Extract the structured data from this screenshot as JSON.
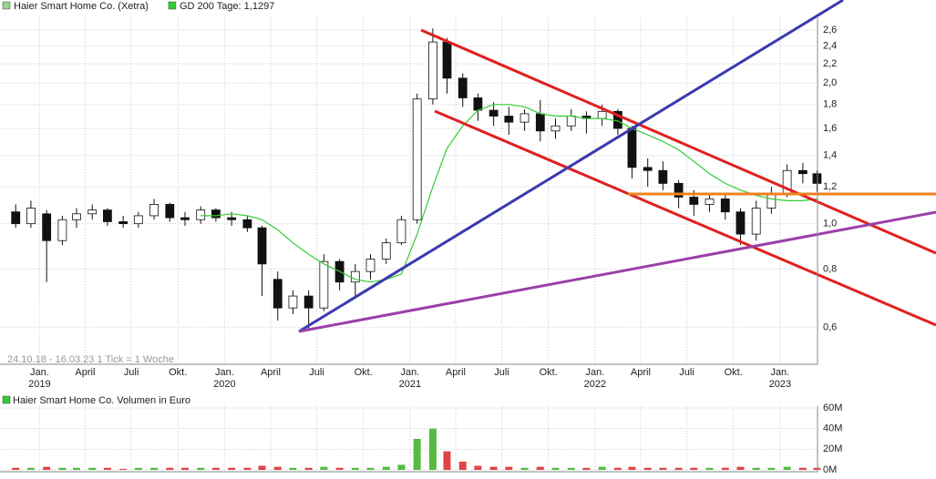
{
  "chart_data": [
    {
      "type": "candlestick",
      "x": [
        "2018-11",
        "2018-12",
        "2019-01",
        "2019-02",
        "2019-03",
        "2019-04",
        "2019-05",
        "2019-06",
        "2019-07",
        "2019-08",
        "2019-09",
        "2019-10",
        "2019-11",
        "2019-12",
        "2020-01",
        "2020-02",
        "2020-03",
        "2020-04",
        "2020-05",
        "2020-06",
        "2020-07",
        "2020-08",
        "2020-09",
        "2020-10",
        "2020-11",
        "2020-12",
        "2021-01",
        "2021-02",
        "2021-03",
        "2021-04",
        "2021-05",
        "2021-06",
        "2021-07",
        "2021-08",
        "2021-09",
        "2021-10",
        "2021-11",
        "2021-12",
        "2022-01",
        "2022-02",
        "2022-03",
        "2022-04",
        "2022-05",
        "2022-06",
        "2022-07",
        "2022-08",
        "2022-09",
        "2022-10",
        "2022-11",
        "2022-12",
        "2023-01",
        "2023-02",
        "2023-03"
      ],
      "series": [
        {
          "name": "Haier Smart Home Co. (Xetra)",
          "color": "#9ad28a",
          "open": [
            1.06,
            1.0,
            1.05,
            0.92,
            1.02,
            1.05,
            1.07,
            1.01,
            1.0,
            1.04,
            1.1,
            1.03,
            1.02,
            1.07,
            1.03,
            1.02,
            0.98,
            0.76,
            0.66,
            0.7,
            0.66,
            0.83,
            0.75,
            0.79,
            0.84,
            0.91,
            1.02,
            1.85,
            2.45,
            2.05,
            1.86,
            1.75,
            1.7,
            1.65,
            1.72,
            1.58,
            1.62,
            1.7,
            1.68,
            1.74,
            1.6,
            1.32,
            1.3,
            1.22,
            1.14,
            1.1,
            1.13,
            1.06,
            0.95,
            1.08,
            1.16,
            1.3,
            1.28
          ],
          "high": [
            1.1,
            1.12,
            1.07,
            1.04,
            1.08,
            1.1,
            1.08,
            1.04,
            1.06,
            1.13,
            1.11,
            1.06,
            1.09,
            1.08,
            1.06,
            1.04,
            0.99,
            0.79,
            0.72,
            0.72,
            0.86,
            0.84,
            0.82,
            0.86,
            0.93,
            1.04,
            1.9,
            2.62,
            2.5,
            2.1,
            1.9,
            1.82,
            1.78,
            1.76,
            1.84,
            1.68,
            1.76,
            1.74,
            1.8,
            1.76,
            1.62,
            1.38,
            1.36,
            1.24,
            1.18,
            1.16,
            1.15,
            1.08,
            1.12,
            1.2,
            1.34,
            1.35,
            1.3
          ],
          "low": [
            0.98,
            0.98,
            0.75,
            0.9,
            0.98,
            1.02,
            0.99,
            0.98,
            0.98,
            1.02,
            1.01,
            0.99,
            1.0,
            1.01,
            0.99,
            0.96,
            0.7,
            0.62,
            0.64,
            0.59,
            0.65,
            0.72,
            0.7,
            0.76,
            0.82,
            0.9,
            1.0,
            1.8,
            1.9,
            1.78,
            1.66,
            1.62,
            1.55,
            1.58,
            1.5,
            1.52,
            1.58,
            1.56,
            1.62,
            1.55,
            1.25,
            1.2,
            1.18,
            1.08,
            1.04,
            1.06,
            1.02,
            0.9,
            0.92,
            1.05,
            1.14,
            1.22,
            1.17
          ],
          "close": [
            1.0,
            1.08,
            0.92,
            1.02,
            1.05,
            1.07,
            1.01,
            1.0,
            1.04,
            1.1,
            1.03,
            1.02,
            1.07,
            1.03,
            1.02,
            0.98,
            0.82,
            0.66,
            0.7,
            0.66,
            0.83,
            0.75,
            0.79,
            0.84,
            0.91,
            1.02,
            1.85,
            2.45,
            2.05,
            1.86,
            1.75,
            1.7,
            1.65,
            1.72,
            1.58,
            1.62,
            1.7,
            1.68,
            1.74,
            1.6,
            1.32,
            1.3,
            1.22,
            1.14,
            1.1,
            1.13,
            1.06,
            0.95,
            1.08,
            1.16,
            1.3,
            1.28,
            1.22
          ]
        },
        {
          "name": "GD 200 Tage: 1,1297",
          "color": "#33cc33",
          "values": [
            null,
            null,
            null,
            null,
            null,
            null,
            null,
            null,
            null,
            null,
            null,
            null,
            1.04,
            1.04,
            1.05,
            1.04,
            1.02,
            0.97,
            0.91,
            0.86,
            0.82,
            0.79,
            0.76,
            0.75,
            0.76,
            0.78,
            0.95,
            1.2,
            1.45,
            1.62,
            1.75,
            1.8,
            1.8,
            1.78,
            1.72,
            1.7,
            1.7,
            1.68,
            1.68,
            1.66,
            1.6,
            1.55,
            1.5,
            1.44,
            1.36,
            1.28,
            1.22,
            1.18,
            1.15,
            1.13,
            1.12,
            1.12,
            1.13
          ]
        }
      ],
      "up_color": "#ffffff",
      "down_color": "#111111",
      "log_scale": true,
      "grid": true,
      "xlim": [
        "2018-10-24",
        "2023-03-16"
      ],
      "ylim": [
        0.5,
        2.78
      ],
      "yticks": [
        {
          "value": 0.6,
          "label": "0,6"
        },
        {
          "value": 0.8,
          "label": "0,8"
        },
        {
          "value": 1.0,
          "label": "1,0"
        },
        {
          "value": 1.2,
          "label": "1,2"
        },
        {
          "value": 1.4,
          "label": "1,4"
        },
        {
          "value": 1.6,
          "label": "1,6"
        },
        {
          "value": 1.8,
          "label": "1,8"
        },
        {
          "value": 2.0,
          "label": "2,0"
        },
        {
          "value": 2.2,
          "label": "2,2"
        },
        {
          "value": 2.4,
          "label": "2,4"
        },
        {
          "value": 2.6,
          "label": "2,6"
        }
      ],
      "xticks": [
        {
          "value": "2019-01",
          "label": "Jan."
        },
        {
          "value": "2019-04",
          "label": "April"
        },
        {
          "value": "2019-07",
          "label": "Juli"
        },
        {
          "value": "2019-10",
          "label": "Okt."
        },
        {
          "value": "2020-01",
          "label": "Jan."
        },
        {
          "value": "2020-04",
          "label": "April"
        },
        {
          "value": "2020-07",
          "label": "Juli"
        },
        {
          "value": "2020-10",
          "label": "Okt."
        },
        {
          "value": "2021-01",
          "label": "Jan."
        },
        {
          "value": "2021-04",
          "label": "April"
        },
        {
          "value": "2021-07",
          "label": "Juli"
        },
        {
          "value": "2021-10",
          "label": "Okt."
        },
        {
          "value": "2022-01",
          "label": "Jan."
        },
        {
          "value": "2022-04",
          "label": "April"
        },
        {
          "value": "2022-07",
          "label": "Juli"
        },
        {
          "value": "2022-10",
          "label": "Okt."
        },
        {
          "value": "2023-01",
          "label": "Jan."
        }
      ],
      "xyears": [
        {
          "value": "2019-01",
          "label": "2019"
        },
        {
          "value": "2020-01",
          "label": "2020"
        },
        {
          "value": "2021-01",
          "label": "2021"
        },
        {
          "value": "2022-01",
          "label": "2022"
        },
        {
          "value": "2023-01",
          "label": "2023"
        }
      ],
      "footnote": "24.10.18 - 16.03.23   1 Tick = 1 Woche"
    },
    {
      "type": "bar",
      "title": "Haier Smart Home Co. Volumen in Euro",
      "color": "#33cc33",
      "up_color": "#55bb44",
      "down_color": "#e04545",
      "values": [
        2,
        2,
        3,
        2,
        2,
        2,
        2,
        1,
        2,
        2,
        2,
        2,
        2,
        2,
        2,
        2,
        4,
        3,
        2,
        2,
        3,
        2,
        2,
        2,
        3,
        5,
        30,
        40,
        18,
        8,
        4,
        3,
        3,
        2,
        3,
        2,
        2,
        2,
        3,
        2,
        3,
        2,
        2,
        2,
        2,
        2,
        2,
        3,
        2,
        2,
        3,
        2,
        2
      ],
      "ylim": [
        0,
        60
      ],
      "yticks": [
        {
          "value": 0,
          "label": "0M"
        },
        {
          "value": 20,
          "label": "20M"
        },
        {
          "value": 40,
          "label": "40M"
        },
        {
          "value": 60,
          "label": "60M"
        }
      ]
    }
  ]
}
